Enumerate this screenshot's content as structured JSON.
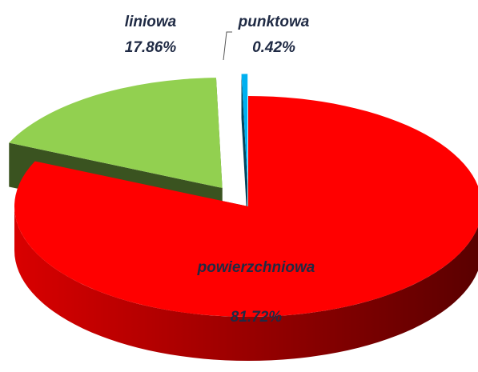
{
  "chart_data": {
    "type": "pie3d",
    "categories": [
      "powierzchniowa",
      "liniowa",
      "punktowa"
    ],
    "values": [
      81.72,
      17.86,
      0.42
    ],
    "value_labels": [
      "81.72%",
      "17.86%",
      "0.42%"
    ],
    "colors": [
      "#ff0000",
      "#92d050",
      "#00b0f0"
    ]
  }
}
